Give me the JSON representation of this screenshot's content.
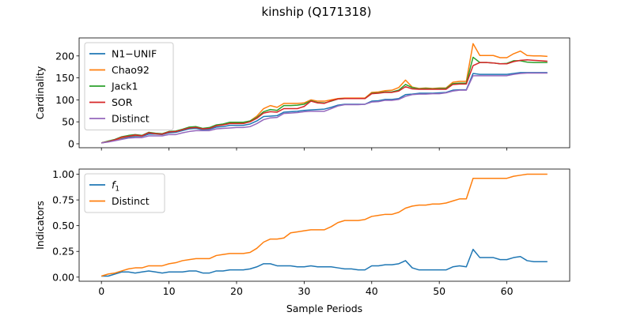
{
  "title": "kinship (Q171318)",
  "chart_data": [
    {
      "type": "line",
      "ylabel": "Cardinality",
      "xlabel": "",
      "xlim": [
        -3.3,
        69.3
      ],
      "ylim": [
        -9,
        241
      ],
      "xticks": [
        0,
        10,
        20,
        30,
        40,
        50,
        60
      ],
      "yticks": [
        0,
        50,
        100,
        150,
        200
      ],
      "legend": "top-left",
      "x": [
        0,
        1,
        2,
        3,
        4,
        5,
        6,
        7,
        8,
        9,
        10,
        11,
        12,
        13,
        14,
        15,
        16,
        17,
        18,
        19,
        20,
        21,
        22,
        23,
        24,
        25,
        26,
        27,
        28,
        29,
        30,
        31,
        32,
        33,
        34,
        35,
        36,
        37,
        38,
        39,
        40,
        41,
        42,
        43,
        44,
        45,
        46,
        47,
        48,
        49,
        50,
        51,
        52,
        53,
        54,
        55,
        56,
        57,
        58,
        59,
        60,
        61,
        62,
        63,
        64,
        65,
        66
      ],
      "series": [
        {
          "name": "N1−UNIF",
          "color": "#1f77b4",
          "values": [
            2,
            5,
            8,
            12,
            15,
            17,
            17,
            22,
            22,
            21,
            25,
            26,
            30,
            34,
            35,
            32,
            33,
            38,
            39,
            42,
            42,
            42,
            45,
            52,
            62,
            63,
            64,
            72,
            73,
            74,
            76,
            77,
            78,
            79,
            83,
            88,
            90,
            90,
            90,
            90,
            97,
            98,
            101,
            101,
            103,
            112,
            113,
            115,
            115,
            115,
            116,
            117,
            122,
            123,
            123,
            160,
            158,
            158,
            158,
            158,
            158,
            160,
            162,
            162,
            162,
            162,
            162
          ]
        },
        {
          "name": "Chao92",
          "color": "#ff7f0e",
          "values": [
            2,
            5,
            8,
            14,
            17,
            19,
            18,
            26,
            23,
            22,
            28,
            28,
            32,
            37,
            38,
            34,
            36,
            42,
            44,
            47,
            47,
            47,
            52,
            63,
            80,
            87,
            83,
            92,
            92,
            92,
            93,
            100,
            97,
            97,
            100,
            103,
            104,
            104,
            104,
            104,
            117,
            118,
            121,
            122,
            128,
            145,
            129,
            126,
            127,
            126,
            127,
            127,
            140,
            142,
            142,
            228,
            201,
            201,
            201,
            196,
            196,
            205,
            211,
            201,
            200,
            200,
            199
          ]
        },
        {
          "name": "Jack1",
          "color": "#2ca02c",
          "values": [
            2,
            6,
            10,
            16,
            19,
            21,
            19,
            26,
            24,
            23,
            28,
            29,
            33,
            38,
            39,
            35,
            37,
            43,
            45,
            49,
            49,
            49,
            52,
            60,
            73,
            78,
            76,
            87,
            87,
            88,
            90,
            98,
            94,
            93,
            97,
            102,
            103,
            103,
            103,
            103,
            115,
            116,
            118,
            118,
            122,
            135,
            128,
            125,
            126,
            125,
            126,
            126,
            137,
            138,
            138,
            197,
            185,
            185,
            184,
            182,
            183,
            189,
            189,
            186,
            185,
            185,
            185
          ]
        },
        {
          "name": "SOR",
          "color": "#d62728",
          "values": [
            2,
            5,
            9,
            15,
            17,
            20,
            18,
            25,
            23,
            22,
            27,
            28,
            32,
            36,
            37,
            34,
            35,
            41,
            43,
            46,
            46,
            46,
            50,
            58,
            70,
            73,
            72,
            80,
            80,
            80,
            85,
            97,
            93,
            92,
            98,
            102,
            103,
            103,
            103,
            103,
            114,
            115,
            117,
            117,
            120,
            130,
            125,
            124,
            124,
            124,
            124,
            124,
            135,
            136,
            136,
            178,
            185,
            185,
            184,
            182,
            182,
            187,
            190,
            191,
            190,
            189,
            188
          ]
        },
        {
          "name": "Distinct",
          "color": "#9467bd",
          "values": [
            2,
            4,
            7,
            10,
            13,
            14,
            14,
            18,
            18,
            18,
            21,
            21,
            25,
            28,
            30,
            30,
            30,
            34,
            35,
            36,
            37,
            37,
            39,
            46,
            55,
            59,
            60,
            69,
            70,
            71,
            73,
            74,
            74,
            74,
            80,
            86,
            89,
            89,
            89,
            90,
            95,
            96,
            99,
            99,
            101,
            108,
            112,
            113,
            113,
            114,
            114,
            116,
            120,
            122,
            122,
            155,
            155,
            155,
            155,
            155,
            155,
            158,
            160,
            161,
            161,
            161,
            161
          ]
        }
      ]
    },
    {
      "type": "line",
      "ylabel": "Indicators",
      "xlabel": "Sample Periods",
      "xlim": [
        -3.3,
        69.3
      ],
      "ylim": [
        -0.04,
        1.05
      ],
      "xticks": [
        0,
        10,
        20,
        30,
        40,
        50,
        60
      ],
      "yticks": [
        0.0,
        0.25,
        0.5,
        0.75,
        1.0
      ],
      "ytick_labels": [
        "0.00",
        "0.25",
        "0.50",
        "0.75",
        "1.00"
      ],
      "legend": "top-left",
      "x": [
        0,
        1,
        2,
        3,
        4,
        5,
        6,
        7,
        8,
        9,
        10,
        11,
        12,
        13,
        14,
        15,
        16,
        17,
        18,
        19,
        20,
        21,
        22,
        23,
        24,
        25,
        26,
        27,
        28,
        29,
        30,
        31,
        32,
        33,
        34,
        35,
        36,
        37,
        38,
        39,
        40,
        41,
        42,
        43,
        44,
        45,
        46,
        47,
        48,
        49,
        50,
        51,
        52,
        53,
        54,
        55,
        56,
        57,
        58,
        59,
        60,
        61,
        62,
        63,
        64,
        65,
        66
      ],
      "series": [
        {
          "name": "f1",
          "color": "#1f77b4",
          "values": [
            0.01,
            0.01,
            0.03,
            0.05,
            0.05,
            0.04,
            0.05,
            0.06,
            0.05,
            0.04,
            0.05,
            0.05,
            0.05,
            0.06,
            0.06,
            0.04,
            0.04,
            0.06,
            0.06,
            0.07,
            0.07,
            0.07,
            0.08,
            0.1,
            0.13,
            0.13,
            0.11,
            0.11,
            0.11,
            0.1,
            0.1,
            0.11,
            0.1,
            0.1,
            0.1,
            0.09,
            0.08,
            0.08,
            0.07,
            0.07,
            0.11,
            0.11,
            0.12,
            0.12,
            0.13,
            0.16,
            0.09,
            0.07,
            0.07,
            0.07,
            0.07,
            0.07,
            0.1,
            0.11,
            0.1,
            0.27,
            0.19,
            0.19,
            0.19,
            0.17,
            0.17,
            0.19,
            0.2,
            0.16,
            0.15,
            0.15,
            0.15
          ]
        },
        {
          "name": "Distinct",
          "color": "#ff7f0e",
          "values": [
            0.01,
            0.03,
            0.04,
            0.06,
            0.08,
            0.09,
            0.09,
            0.11,
            0.11,
            0.11,
            0.13,
            0.14,
            0.16,
            0.17,
            0.18,
            0.18,
            0.18,
            0.21,
            0.22,
            0.23,
            0.23,
            0.23,
            0.24,
            0.28,
            0.34,
            0.37,
            0.37,
            0.38,
            0.43,
            0.44,
            0.45,
            0.46,
            0.46,
            0.46,
            0.49,
            0.53,
            0.55,
            0.55,
            0.55,
            0.56,
            0.59,
            0.6,
            0.61,
            0.61,
            0.63,
            0.67,
            0.69,
            0.7,
            0.7,
            0.71,
            0.71,
            0.72,
            0.74,
            0.76,
            0.76,
            0.96,
            0.96,
            0.96,
            0.96,
            0.96,
            0.96,
            0.98,
            0.99,
            1.0,
            1.0,
            1.0,
            1.0
          ]
        }
      ]
    }
  ]
}
